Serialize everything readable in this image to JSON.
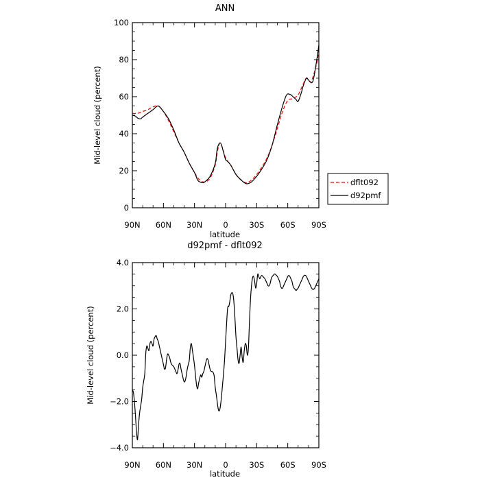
{
  "chart_data": [
    {
      "type": "line",
      "title": "ANN",
      "xlabel": "latitude",
      "ylabel": "Mid-level cloud (percent)",
      "ylim": [
        0,
        100
      ],
      "xlim": [
        90,
        -90
      ],
      "yticks": [
        "0",
        "20",
        "40",
        "60",
        "80",
        "100"
      ],
      "xticks": [
        "90N",
        "60N",
        "30N",
        "0",
        "30S",
        "60S",
        "90S"
      ],
      "x_tick_values": [
        90,
        60,
        30,
        0,
        -30,
        -60,
        -90
      ],
      "legend": [
        "dflt092",
        "d92pmf"
      ],
      "legend_position": "right",
      "series": [
        {
          "name": "dflt092",
          "color": "#ff0000",
          "dash": "dashed",
          "x": [
            90,
            85,
            80,
            75,
            70,
            65,
            60,
            55,
            50,
            45,
            40,
            35,
            30,
            25,
            20,
            15,
            10,
            8,
            5,
            0,
            -5,
            -10,
            -15,
            -20,
            -25,
            -30,
            -35,
            -40,
            -45,
            -50,
            -55,
            -60,
            -65,
            -70,
            -75,
            -78,
            -82,
            -85,
            -88,
            -90
          ],
          "values": [
            51,
            51,
            52,
            53,
            54.5,
            55,
            52,
            47,
            41,
            35,
            30,
            24,
            19,
            15,
            14,
            16,
            23,
            30,
            35,
            27,
            23,
            18,
            15,
            13.5,
            15,
            18,
            22,
            27,
            34,
            43,
            52,
            58,
            59,
            61,
            67,
            70,
            68,
            72,
            78,
            85
          ]
        },
        {
          "name": "d92pmf",
          "color": "#000000",
          "dash": "solid",
          "x": [
            90,
            87,
            85,
            82,
            80,
            75,
            70,
            65,
            60,
            55,
            50,
            45,
            40,
            35,
            30,
            27,
            25,
            22,
            20,
            15,
            10,
            8,
            5,
            2,
            0,
            -2,
            -5,
            -10,
            -15,
            -20,
            -25,
            -30,
            -35,
            -40,
            -45,
            -50,
            -55,
            -58,
            -60,
            -63,
            -65,
            -68,
            -70,
            -73,
            -75,
            -78,
            -80,
            -83,
            -85,
            -88,
            -90
          ],
          "values": [
            50,
            49.5,
            48.5,
            48,
            49,
            51,
            53,
            55,
            52,
            48,
            42,
            35,
            30,
            24,
            19,
            15,
            14,
            13.5,
            14,
            17,
            24,
            32,
            35,
            30,
            26,
            25,
            23,
            18,
            15,
            13,
            14,
            17,
            21,
            26,
            34,
            45,
            55,
            60,
            61.5,
            61,
            60,
            58.5,
            57.5,
            62,
            66,
            70,
            69,
            67.5,
            70,
            80,
            88
          ]
        }
      ]
    },
    {
      "type": "line",
      "title": "d92pmf - dflt092",
      "xlabel": "latitude",
      "ylabel": "Mid-level cloud (percent)",
      "ylim": [
        -4,
        4
      ],
      "xlim": [
        90,
        -90
      ],
      "yticks": [
        "−4.0",
        "−2.0",
        "0.0",
        "2.0",
        "4.0"
      ],
      "xticks": [
        "90N",
        "60N",
        "30N",
        "0",
        "30S",
        "60S",
        "90S"
      ],
      "x_tick_values": [
        90,
        60,
        30,
        0,
        -30,
        -60,
        -90
      ],
      "series": [
        {
          "color": "#000000",
          "dash": "solid",
          "x": [
            90,
            89,
            88,
            87,
            86,
            85,
            84,
            83,
            82,
            81,
            80,
            79,
            78,
            77,
            76,
            75,
            74,
            73,
            72,
            71,
            70,
            69,
            68,
            67,
            66,
            65,
            64,
            63,
            62,
            61,
            60,
            59,
            58,
            57,
            56,
            55,
            54,
            53,
            52,
            51,
            50,
            49,
            48,
            47,
            46,
            45,
            44,
            43,
            42,
            41,
            40,
            39,
            38,
            37,
            36,
            35,
            34,
            33,
            32,
            31,
            30,
            29,
            28,
            27,
            26,
            25,
            24,
            23,
            22,
            21,
            20,
            19,
            18,
            17,
            16,
            15,
            14,
            13,
            12,
            11,
            10,
            9,
            8,
            7,
            6,
            5,
            4,
            3,
            2,
            1,
            0,
            -1,
            -2,
            -3,
            -4,
            -5,
            -6,
            -7,
            -8,
            -9,
            -10,
            -11,
            -12,
            -13,
            -14,
            -15,
            -16,
            -17,
            -18,
            -19,
            -20,
            -21,
            -22,
            -23,
            -24,
            -25,
            -26,
            -27,
            -28,
            -29,
            -30,
            -31,
            -32,
            -33,
            -34,
            -35,
            -36,
            -37,
            -38,
            -39,
            -40,
            -41,
            -42,
            -43,
            -44,
            -45,
            -46,
            -47,
            -48,
            -49,
            -50,
            -51,
            -52,
            -53,
            -54,
            -55,
            -56,
            -57,
            -58,
            -59,
            -60,
            -61,
            -62,
            -63,
            -64,
            -65,
            -66,
            -67,
            -68,
            -69,
            -70,
            -71,
            -72,
            -73,
            -74,
            -75,
            -76,
            -77,
            -78,
            -79,
            -80,
            -81,
            -82,
            -83,
            -84,
            -85,
            -86,
            -87,
            -88,
            -89,
            -90
          ],
          "values": [
            -1.5,
            -1.6,
            -2.0,
            -2.6,
            -3.3,
            -3.65,
            -3.0,
            -2.5,
            -2.2,
            -1.9,
            -1.4,
            -1.1,
            -0.8,
            0.1,
            0.4,
            0.3,
            0.2,
            0.5,
            0.6,
            0.5,
            0.4,
            0.7,
            0.8,
            0.85,
            0.7,
            0.6,
            0.4,
            0.2,
            0.0,
            -0.2,
            -0.4,
            -0.6,
            -0.55,
            -0.2,
            0.05,
            0.0,
            -0.1,
            -0.3,
            -0.4,
            -0.45,
            -0.5,
            -0.6,
            -0.7,
            -0.8,
            -0.65,
            -0.4,
            -0.35,
            -0.6,
            -0.8,
            -1.0,
            -1.15,
            -1.1,
            -0.9,
            -0.6,
            -0.4,
            -0.2,
            0.35,
            0.5,
            0.2,
            -0.1,
            -0.45,
            -0.9,
            -1.3,
            -1.45,
            -1.2,
            -1.0,
            -0.85,
            -0.95,
            -0.8,
            -0.7,
            -0.5,
            -0.3,
            -0.15,
            -0.2,
            -0.4,
            -0.6,
            -0.7,
            -0.7,
            -0.75,
            -0.9,
            -1.4,
            -1.7,
            -2.05,
            -2.35,
            -2.4,
            -2.2,
            -1.8,
            -1.3,
            -0.8,
            -0.2,
            0.6,
            1.4,
            2.05,
            2.1,
            2.3,
            2.6,
            2.7,
            2.65,
            2.3,
            1.6,
            0.8,
            0.3,
            -0.2,
            -0.35,
            0.0,
            0.35,
            -0.1,
            -0.3,
            0.2,
            0.5,
            0.4,
            0.0,
            0.3,
            1.4,
            2.4,
            3.0,
            3.35,
            3.4,
            3.2,
            2.9,
            3.1,
            3.5,
            3.4,
            3.3,
            3.4,
            3.45,
            3.4,
            3.35,
            3.3,
            3.2,
            3.1,
            3.0,
            3.0,
            3.1,
            3.3,
            3.4,
            3.45,
            3.5,
            3.5,
            3.45,
            3.4,
            3.3,
            3.2,
            3.0,
            2.9,
            2.9,
            3.0,
            3.1,
            3.2,
            3.3,
            3.4,
            3.45,
            3.4,
            3.3,
            3.2,
            3.0,
            2.9,
            2.85,
            2.8,
            2.85,
            2.9,
            3.0,
            3.1,
            3.2,
            3.3,
            3.4,
            3.45,
            3.45,
            3.4,
            3.3,
            3.2,
            3.1,
            3.0,
            2.9,
            2.85,
            2.85,
            2.9,
            3.0,
            3.1,
            3.2,
            3.3
          ]
        }
      ]
    }
  ]
}
